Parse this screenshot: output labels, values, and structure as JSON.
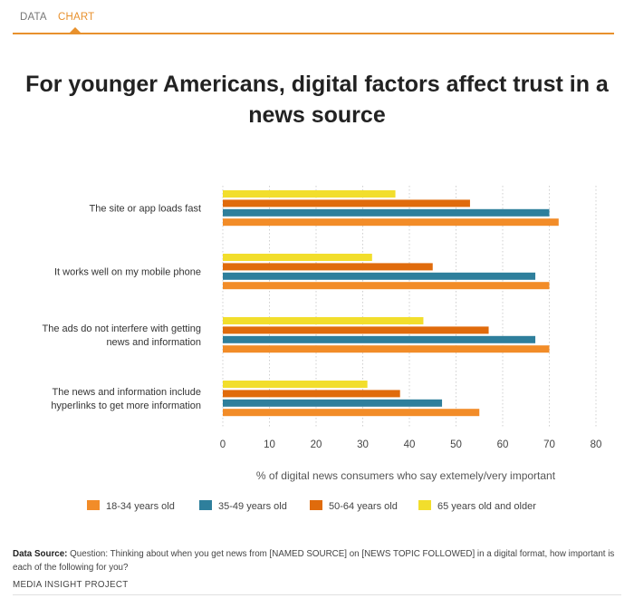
{
  "tabs": {
    "data_label": "DATA",
    "chart_label": "CHART"
  },
  "chart_data": {
    "type": "bar",
    "orientation": "horizontal",
    "title": "For younger Americans, digital factors affect trust in a news source",
    "xlabel": "% of digital news consumers who say extemely/very important",
    "ylabel": "",
    "xlim": [
      0,
      80
    ],
    "ticks": [
      "0",
      "10",
      "20",
      "30",
      "40",
      "50",
      "60",
      "70",
      "80"
    ],
    "grid": "vertical-dotted",
    "legend_position": "bottom",
    "categories": [
      [
        "The site or app loads fast"
      ],
      [
        "It works well on my mobile phone"
      ],
      [
        "The ads do not interfere with getting",
        "news and information"
      ],
      [
        "The news and information include",
        "hyperlinks to get more information"
      ]
    ],
    "series": [
      {
        "name": "18-34 years old",
        "color": "#f28c28",
        "values": [
          72,
          70,
          70,
          55
        ]
      },
      {
        "name": "35-49 years old",
        "color": "#2e7f9c",
        "values": [
          70,
          67,
          67,
          47
        ]
      },
      {
        "name": "50-64 years old",
        "color": "#e06b0c",
        "values": [
          53,
          45,
          57,
          38
        ]
      },
      {
        "name": "65 years old and older",
        "color": "#f2de2c",
        "values": [
          37,
          32,
          43,
          31
        ]
      }
    ]
  },
  "source": {
    "label": "Data Source:",
    "text": "Question: Thinking about when you get news from [NAMED SOURCE] on [NEWS TOPIC FOLLOWED] in a digital format, how important is each of the following for you?",
    "org": "MEDIA INSIGHT PROJECT"
  }
}
